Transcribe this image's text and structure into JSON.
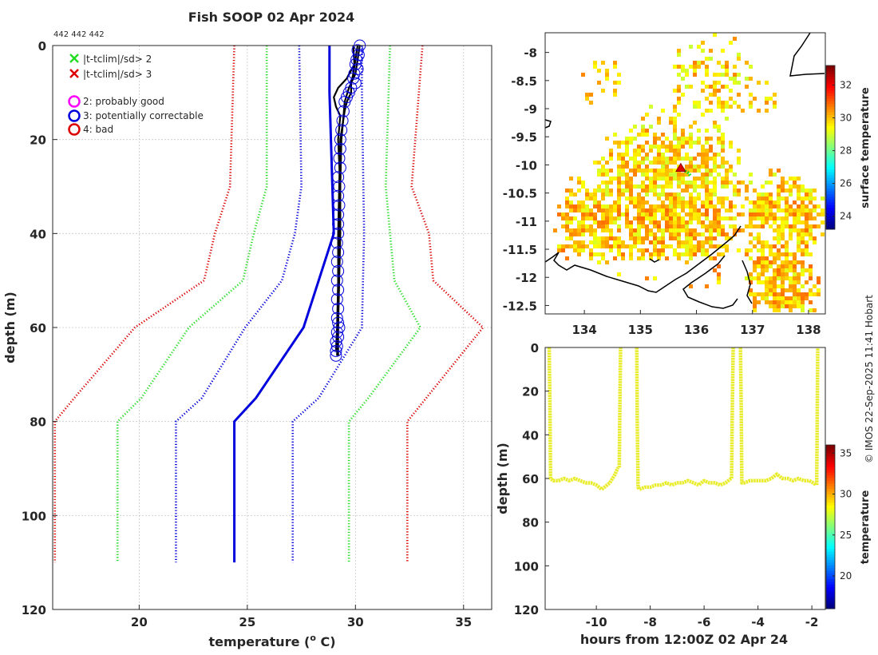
{
  "title": "Fish SOOP 02 Apr 2024",
  "profile_ids": "442 442 442",
  "credit": "© IMOS 22-Sep-2025 11:41 Hobart",
  "legend": {
    "cross_green": "|t-tclim|/sd> 2",
    "cross_red": "|t-tclim|/sd> 3",
    "circle_magenta": "2: probably good",
    "circle_blue": "3: potentially correctable",
    "circle_red": "4: bad"
  },
  "colors": {
    "green": "#22dd22",
    "red": "#dd0000",
    "blue": "#0000dd",
    "magenta": "#ff00ff",
    "black": "#000000",
    "yellow": "#e8ec2a",
    "grid": "#c8c8c8"
  },
  "chart_data": [
    {
      "id": "profile",
      "type": "line",
      "xlabel": "temperature (° C)",
      "xlabel_main": "temperature (",
      "xlabel_sup": "o",
      "xlabel_end": " C)",
      "ylabel": "depth (m)",
      "xlim": [
        16,
        36.3
      ],
      "ylim": [
        0,
        120
      ],
      "y_reversed": true,
      "xticks": [
        20,
        25,
        30,
        35
      ],
      "yticks": [
        0,
        20,
        40,
        60,
        80,
        100,
        120
      ],
      "grid": true,
      "legend_position": "top-left",
      "climatology": [
        {
          "name": "clim -3sd",
          "color": "red",
          "style": "dotted",
          "depth": [
            0,
            30,
            40,
            50,
            60,
            75,
            80,
            110
          ],
          "temp": [
            24.4,
            24.2,
            23.5,
            23.0,
            19.8,
            17.0,
            16.1,
            16.1
          ]
        },
        {
          "name": "clim -2sd",
          "color": "green",
          "style": "dotted",
          "depth": [
            0,
            30,
            40,
            50,
            60,
            75,
            80,
            110
          ],
          "temp": [
            25.9,
            25.9,
            25.3,
            24.8,
            22.3,
            20.1,
            19.0,
            19.0
          ]
        },
        {
          "name": "clim -1sd",
          "color": "blue",
          "style": "dotted",
          "depth": [
            0,
            30,
            40,
            50,
            60,
            75,
            80,
            110
          ],
          "temp": [
            27.4,
            27.5,
            27.2,
            26.6,
            24.9,
            22.9,
            21.7,
            21.7
          ]
        },
        {
          "name": "clim mean",
          "color": "blue",
          "style": "solid",
          "depth": [
            0,
            10,
            40,
            60,
            75,
            80,
            110
          ],
          "temp": [
            28.8,
            28.8,
            29.0,
            27.6,
            25.4,
            24.4,
            24.4
          ]
        },
        {
          "name": "clim +1sd",
          "color": "blue",
          "style": "dotted",
          "depth": [
            0,
            10,
            40,
            60,
            75,
            80,
            110
          ],
          "temp": [
            30.3,
            30.3,
            30.4,
            30.3,
            28.3,
            27.1,
            27.1
          ]
        },
        {
          "name": "clim +2sd",
          "color": "green",
          "style": "dotted",
          "depth": [
            0,
            30,
            40,
            50,
            60,
            75,
            80,
            110
          ],
          "temp": [
            31.6,
            31.4,
            31.6,
            31.8,
            33.0,
            30.6,
            29.7,
            29.7
          ]
        },
        {
          "name": "clim +3sd",
          "color": "red",
          "style": "dotted",
          "depth": [
            0,
            30,
            40,
            50,
            60,
            80,
            110
          ],
          "temp": [
            33.1,
            32.6,
            33.4,
            33.6,
            35.9,
            32.4,
            32.4
          ]
        }
      ],
      "observed": [
        {
          "name": "cast 1",
          "depth": [
            0,
            3,
            6,
            8,
            10,
            12,
            14,
            20,
            30,
            40,
            50,
            60,
            65
          ],
          "temp": [
            30.1,
            30.0,
            29.9,
            29.8,
            29.8,
            29.6,
            29.5,
            29.3,
            29.25,
            29.2,
            29.2,
            29.15,
            29.1
          ]
        },
        {
          "name": "cast 2",
          "depth": [
            0,
            4,
            7,
            9,
            11,
            13,
            15,
            20,
            30,
            40,
            50,
            60,
            66
          ],
          "temp": [
            29.9,
            29.95,
            29.6,
            29.2,
            29.0,
            29.1,
            29.3,
            29.2,
            29.3,
            29.25,
            29.2,
            29.2,
            29.15
          ]
        },
        {
          "name": "cast 3",
          "depth": [
            0,
            3,
            6,
            9,
            12,
            15,
            20,
            30,
            40,
            50,
            60,
            66
          ],
          "temp": [
            30.2,
            30.1,
            30.0,
            29.7,
            29.5,
            29.45,
            29.35,
            29.3,
            29.3,
            29.25,
            29.2,
            29.2
          ]
        }
      ],
      "flag3_points": {
        "depth": [
          0,
          1,
          2,
          3,
          4,
          5,
          6,
          7,
          8,
          9,
          10,
          11,
          12,
          14,
          16,
          18,
          20,
          22,
          24,
          26,
          28,
          30,
          32,
          34,
          36,
          38,
          40,
          42,
          44,
          46,
          48,
          50,
          52,
          54,
          56,
          58,
          59,
          60,
          61,
          62,
          63,
          64,
          65,
          66
        ],
        "temp": [
          30.2,
          30.1,
          30.15,
          30.05,
          30.0,
          30.1,
          29.95,
          29.9,
          30.0,
          29.8,
          29.7,
          29.6,
          29.5,
          29.45,
          29.4,
          29.35,
          29.3,
          29.3,
          29.25,
          29.3,
          29.2,
          29.25,
          29.2,
          29.25,
          29.2,
          29.2,
          29.2,
          29.15,
          29.2,
          29.15,
          29.2,
          29.15,
          29.2,
          29.15,
          29.2,
          29.15,
          29.2,
          29.25,
          29.15,
          29.2,
          29.1,
          29.15,
          29.1,
          29.1
        ]
      }
    },
    {
      "id": "map",
      "type": "heatmap",
      "colorbar_label": "surface temperature",
      "xlim": [
        133.3,
        138.3
      ],
      "ylim": [
        -12.65,
        -7.65
      ],
      "xticks": [
        134,
        135,
        136,
        137,
        138
      ],
      "yticks": [
        -8,
        -8.5,
        -9,
        -9.5,
        -10,
        -10.5,
        -11,
        -11.5,
        -12,
        -12.5
      ],
      "colorbar_ticks": [
        24,
        26,
        28,
        30,
        32
      ],
      "colorbar_range": [
        23.2,
        33.2
      ],
      "track_lon": [
        135.72,
        135.78,
        135.85,
        135.9
      ],
      "track_lat": [
        -10.04,
        -10.1,
        -10.14,
        -10.2
      ],
      "start_marker": {
        "lon": 135.72,
        "lat": -10.06
      }
    },
    {
      "id": "timeseries",
      "type": "line",
      "xlabel": "hours from 12:00Z 02 Apr 24",
      "ylabel": "depth (m)",
      "xlim": [
        -11.9,
        -1.5
      ],
      "ylim": [
        0,
        120
      ],
      "y_reversed": true,
      "xticks": [
        -10,
        -8,
        -6,
        -4,
        -2
      ],
      "yticks": [
        0,
        20,
        40,
        60,
        80,
        100,
        120
      ],
      "colorbar_label": "temperature",
      "colorbar_ticks": [
        20,
        25,
        30,
        35
      ],
      "colorbar_range": [
        16,
        36
      ],
      "segments": [
        {
          "hours": [
            -11.75,
            -11.72,
            -11.7,
            -11.6,
            -11.4,
            -11.2,
            -11.0,
            -10.8,
            -10.6,
            -10.4,
            -10.2,
            -10.0,
            -9.8,
            -9.6,
            -9.5,
            -9.4,
            -9.3,
            -9.2
          ],
          "depth": [
            0,
            30,
            60,
            61,
            61,
            60,
            61,
            60,
            61,
            62,
            62,
            63,
            65,
            63,
            62,
            60,
            58,
            55
          ]
        },
        {
          "hours": [
            -9.15,
            -9.12,
            -9.1
          ],
          "depth": [
            55,
            20,
            0
          ]
        },
        {
          "hours": [
            -8.5,
            -8.48,
            -8.45,
            -8.4,
            -8.2,
            -8.0,
            -7.8,
            -7.6,
            -7.4,
            -7.2,
            -7.0,
            -6.8,
            -6.6,
            -6.4,
            -6.2,
            -6.0,
            -5.8,
            -5.6,
            -5.4,
            -5.2,
            -5.0
          ],
          "depth": [
            0,
            35,
            64,
            65,
            64,
            64,
            63,
            63,
            62,
            63,
            62,
            62,
            61,
            62,
            63,
            61,
            62,
            62,
            63,
            62,
            60
          ]
        },
        {
          "hours": [
            -4.98,
            -4.95,
            -4.92
          ],
          "depth": [
            60,
            25,
            0
          ]
        },
        {
          "hours": [
            -4.65,
            -4.62,
            -4.6,
            -4.5,
            -4.3,
            -4.1,
            -3.9,
            -3.7,
            -3.5,
            -3.3,
            -3.1,
            -2.9,
            -2.7,
            -2.5,
            -2.3,
            -2.1,
            -1.95,
            -1.85
          ],
          "depth": [
            0,
            30,
            62,
            62,
            61,
            61,
            61,
            61,
            60,
            58,
            60,
            60,
            61,
            60,
            61,
            61,
            62,
            63
          ]
        },
        {
          "hours": [
            -1.82,
            -1.8,
            -1.78
          ],
          "depth": [
            63,
            30,
            0
          ]
        }
      ]
    }
  ]
}
